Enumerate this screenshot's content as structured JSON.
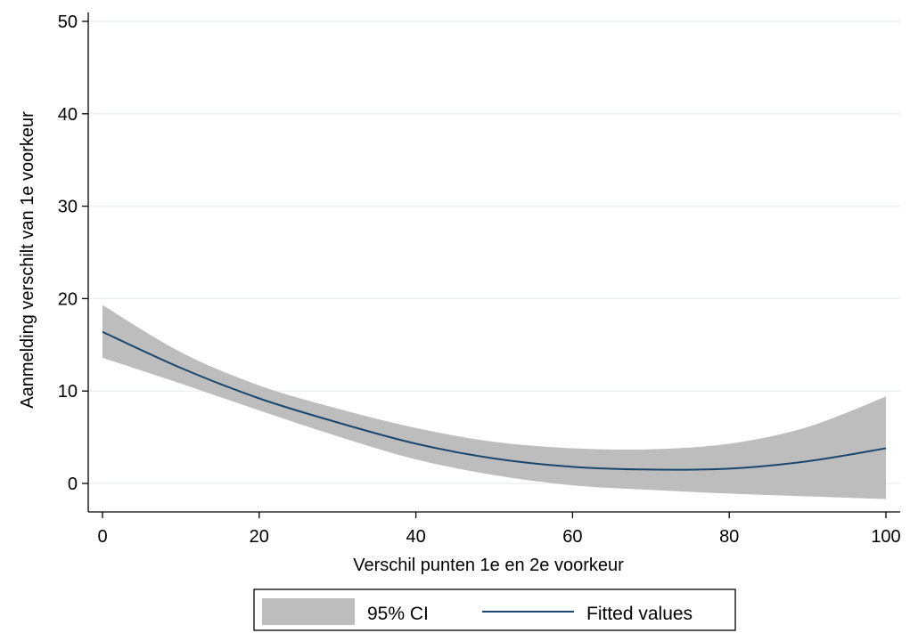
{
  "chart_data": {
    "type": "line",
    "xlabel": "Verschil punten 1e en 2e voorkeur",
    "ylabel": "Aanmelding verschilt van 1e voorkeur",
    "xlim": [
      0,
      100
    ],
    "ylim": [
      0,
      50
    ],
    "x_ticks": [
      0,
      20,
      40,
      60,
      80,
      100
    ],
    "y_ticks": [
      0,
      10,
      20,
      30,
      40,
      50
    ],
    "grid": true,
    "legend_position": "bottom",
    "x": [
      0,
      10,
      20,
      30,
      40,
      50,
      60,
      70,
      80,
      90,
      100
    ],
    "series": [
      {
        "name": "95% CI",
        "kind": "band",
        "color": "#bdbdbd",
        "lower": [
          13.6,
          10.8,
          7.9,
          5.1,
          2.6,
          0.9,
          -0.2,
          -0.7,
          -1.1,
          -1.4,
          -1.7
        ],
        "upper": [
          19.3,
          14.2,
          10.6,
          8.1,
          6.0,
          4.5,
          3.8,
          3.7,
          4.3,
          6.1,
          9.4
        ]
      },
      {
        "name": "Fitted values",
        "kind": "line",
        "color": "#1a476f",
        "values": [
          16.4,
          12.5,
          9.2,
          6.6,
          4.3,
          2.7,
          1.8,
          1.5,
          1.6,
          2.4,
          3.8
        ]
      }
    ]
  }
}
